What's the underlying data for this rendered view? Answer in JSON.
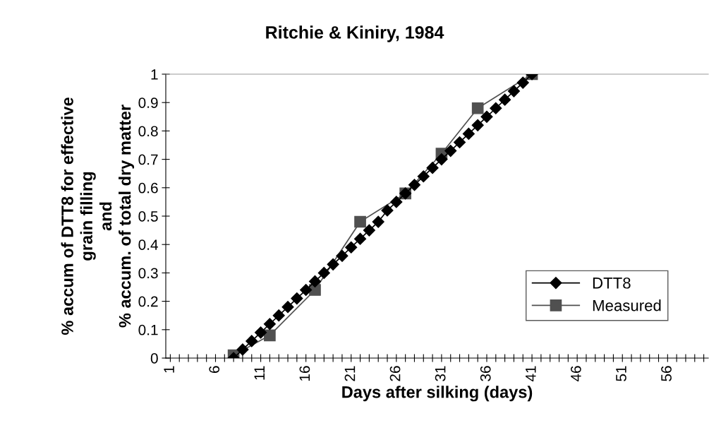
{
  "chart_data": {
    "type": "line",
    "title": "Ritchie & Kiniry, 1984",
    "xlabel": "Days after silking (days)",
    "ylabel": "% accum of DTT8 for effective\ngrain filling\nand\n% accum. of total dry matter",
    "xlim": [
      0.5,
      60.5
    ],
    "xticks": [
      1,
      {
        "value": 2,
        "label": null
      },
      {
        "value": 3,
        "label": null
      },
      {
        "value": 4,
        "label": null
      },
      {
        "value": 5,
        "label": null
      },
      6,
      {
        "value": 7,
        "label": null
      },
      {
        "value": 8,
        "label": null
      },
      {
        "value": 9,
        "label": null
      },
      {
        "value": 10,
        "label": null
      },
      11,
      {
        "value": 12,
        "label": null
      },
      {
        "value": 13,
        "label": null
      },
      {
        "value": 14,
        "label": null
      },
      {
        "value": 15,
        "label": null
      },
      16,
      {
        "value": 17,
        "label": null
      },
      {
        "value": 18,
        "label": null
      },
      {
        "value": 19,
        "label": null
      },
      {
        "value": 20,
        "label": null
      },
      21,
      {
        "value": 22,
        "label": null
      },
      {
        "value": 23,
        "label": null
      },
      {
        "value": 24,
        "label": null
      },
      {
        "value": 25,
        "label": null
      },
      26,
      {
        "value": 27,
        "label": null
      },
      {
        "value": 28,
        "label": null
      },
      {
        "value": 29,
        "label": null
      },
      {
        "value": 30,
        "label": null
      },
      31,
      {
        "value": 32,
        "label": null
      },
      {
        "value": 33,
        "label": null
      },
      {
        "value": 34,
        "label": null
      },
      {
        "value": 35,
        "label": null
      },
      36,
      {
        "value": 37,
        "label": null
      },
      {
        "value": 38,
        "label": null
      },
      {
        "value": 39,
        "label": null
      },
      {
        "value": 40,
        "label": null
      },
      41,
      {
        "value": 42,
        "label": null
      },
      {
        "value": 43,
        "label": null
      },
      {
        "value": 44,
        "label": null
      },
      {
        "value": 45,
        "label": null
      },
      46,
      {
        "value": 47,
        "label": null
      },
      {
        "value": 48,
        "label": null
      },
      {
        "value": 49,
        "label": null
      },
      {
        "value": 50,
        "label": null
      },
      51,
      {
        "value": 52,
        "label": null
      },
      {
        "value": 53,
        "label": null
      },
      {
        "value": 54,
        "label": null
      },
      {
        "value": 55,
        "label": null
      },
      56,
      {
        "value": 57,
        "label": null
      },
      {
        "value": 58,
        "label": null
      },
      {
        "value": 59,
        "label": null
      },
      {
        "value": 60,
        "label": null
      }
    ],
    "ylim": [
      0,
      1
    ],
    "yticks": [
      0,
      0.1,
      0.2,
      0.3,
      0.4,
      0.5,
      0.6,
      0.7,
      0.8,
      0.9,
      1
    ],
    "grid": false,
    "legend": "right",
    "series": [
      {
        "name": "DTT8",
        "color": "#000000",
        "marker": "diamond",
        "x": [
          8,
          9,
          10,
          11,
          12,
          13,
          14,
          15,
          16,
          17,
          18,
          19,
          20,
          21,
          22,
          23,
          24,
          25,
          26,
          27,
          28,
          29,
          30,
          31,
          32,
          33,
          34,
          35,
          36,
          37,
          38,
          39,
          40,
          41
        ],
        "values": [
          0,
          0.03,
          0.06,
          0.09,
          0.12,
          0.15,
          0.18,
          0.21,
          0.24,
          0.27,
          0.3,
          0.33,
          0.36,
          0.39,
          0.42,
          0.45,
          0.48,
          0.52,
          0.55,
          0.58,
          0.61,
          0.64,
          0.67,
          0.7,
          0.73,
          0.76,
          0.79,
          0.82,
          0.85,
          0.88,
          0.91,
          0.94,
          0.97,
          1
        ]
      },
      {
        "name": "Measured",
        "color": "#505050",
        "marker": "square",
        "x": [
          8,
          12,
          17,
          22,
          27,
          31,
          35,
          41
        ],
        "values": [
          0.01,
          0.08,
          0.24,
          0.48,
          0.58,
          0.72,
          0.88,
          1
        ]
      }
    ]
  }
}
